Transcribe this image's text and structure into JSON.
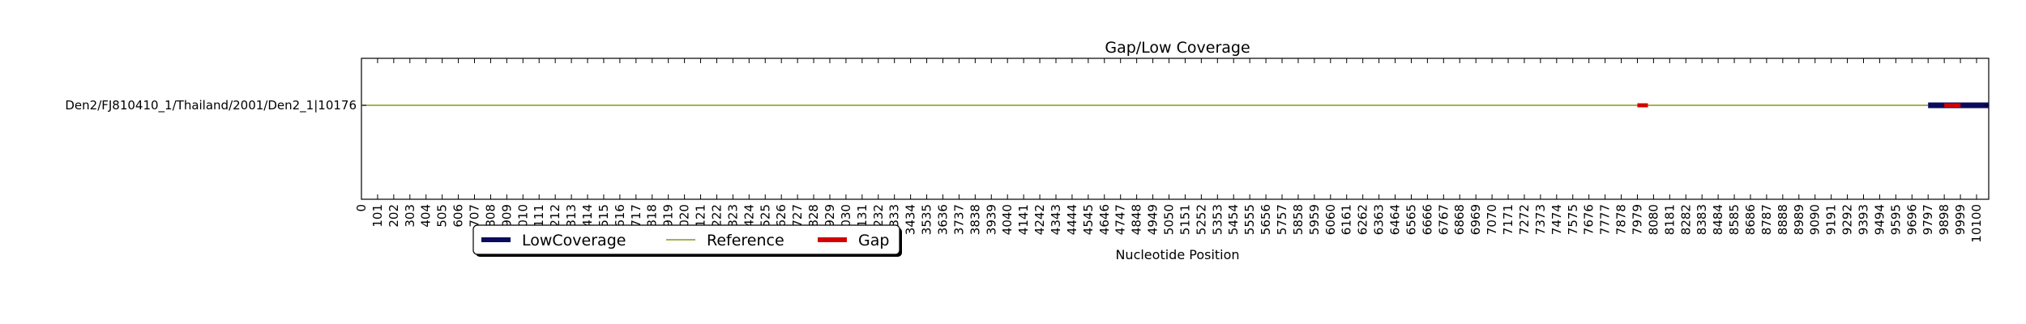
{
  "chart_data": {
    "type": "line",
    "title": "Gap/Low Coverage",
    "xlabel": "Nucleotide Position",
    "ylabel": "",
    "xlim": [
      0,
      10176
    ],
    "x_ticks": [
      0,
      101,
      202,
      303,
      404,
      505,
      606,
      707,
      808,
      909,
      1010,
      1111,
      1212,
      1313,
      1414,
      1515,
      1616,
      1717,
      1818,
      1919,
      2020,
      2121,
      2222,
      2323,
      2424,
      2525,
      2626,
      2727,
      2828,
      2929,
      3030,
      3131,
      3232,
      3333,
      3434,
      3535,
      3636,
      3737,
      3838,
      3939,
      4040,
      4141,
      4242,
      4343,
      4444,
      4545,
      4646,
      4747,
      4848,
      4949,
      5050,
      5151,
      5252,
      5353,
      5454,
      5555,
      5656,
      5757,
      5858,
      5959,
      6060,
      6161,
      6262,
      6363,
      6464,
      6565,
      6666,
      6767,
      6868,
      6969,
      7070,
      7171,
      7272,
      7373,
      7474,
      7575,
      7676,
      7777,
      7878,
      7979,
      8080,
      8181,
      8282,
      8383,
      8484,
      8585,
      8686,
      8787,
      8888,
      8989,
      9090,
      9191,
      9292,
      9393,
      9494,
      9595,
      9696,
      9797,
      9898,
      9999,
      10100
    ],
    "y_categories": [
      "Den2/FJ810410_1/Thailand/2001/Den2_1|10176"
    ],
    "series": [
      {
        "name": "LowCoverage",
        "color": "#0b0b5e",
        "segments": [
          [
            9797,
            10176
          ]
        ]
      },
      {
        "name": "Reference",
        "color": "#9aa63a",
        "segments": [
          [
            0,
            10176
          ]
        ]
      },
      {
        "name": "Gap",
        "color": "#d40000",
        "segments": [
          [
            7979,
            8045
          ],
          [
            9898,
            10000
          ]
        ]
      }
    ],
    "legend": {
      "placement": "bottom-left",
      "columns": 3
    },
    "grid": false
  }
}
